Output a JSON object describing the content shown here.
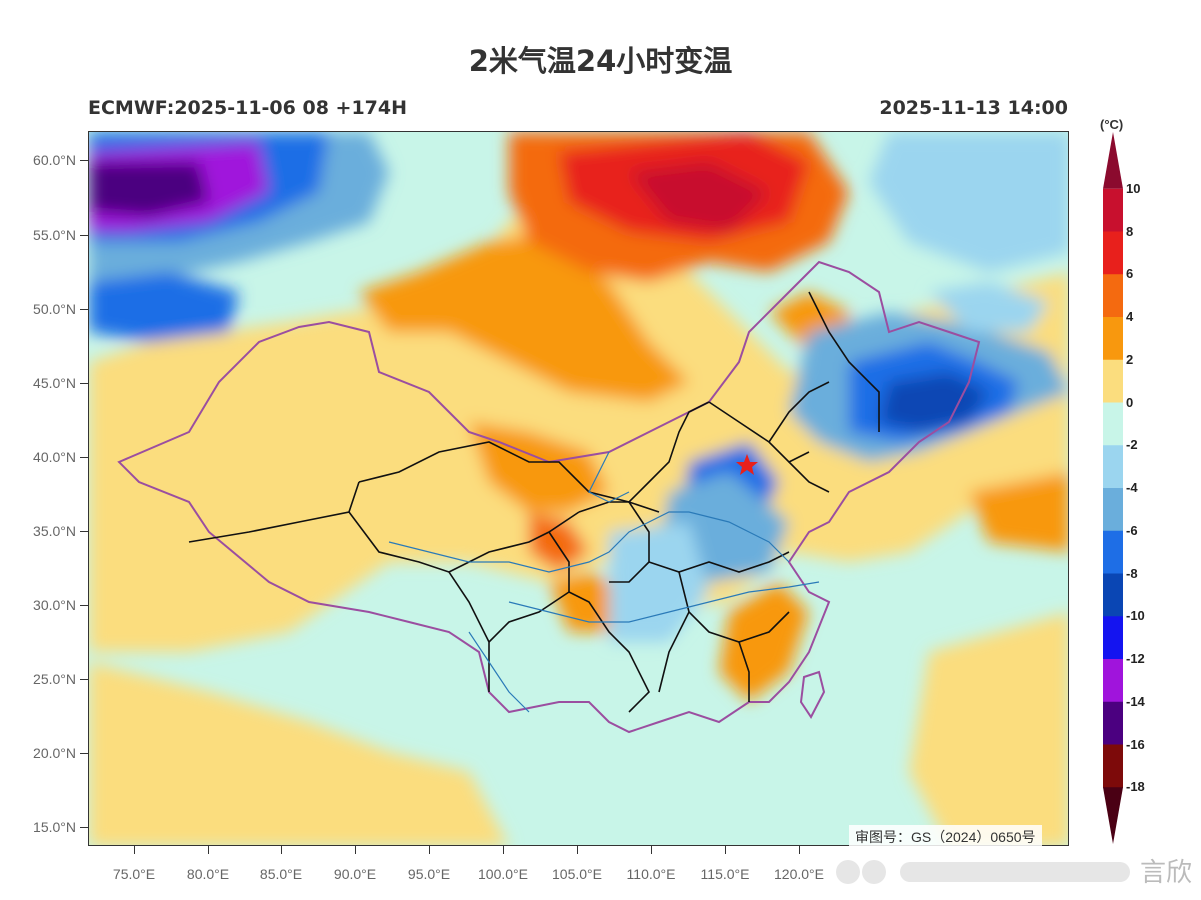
{
  "title": "2米气温24小时变温",
  "subtitle_left": "ECMWF:2025-11-06 08 +174H",
  "subtitle_right": "2025-11-13 14:00",
  "review_number": "审图号：GS（2024）0650号",
  "watermark_text": "言欣",
  "lat_labels": [
    "60.0°N",
    "55.0°N",
    "50.0°N",
    "45.0°N",
    "40.0°N",
    "35.0°N",
    "30.0°N",
    "25.0°N",
    "20.0°N",
    "15.0°N"
  ],
  "lon_labels": [
    "75.0°E",
    "80.0°E",
    "85.0°E",
    "90.0°E",
    "95.0°E",
    "100.0°E",
    "105.0°E",
    "110.0°E",
    "115.0°E",
    "120.0°E"
  ],
  "colorbar": {
    "unit": "(°C)",
    "levels": [
      "10",
      "8",
      "6",
      "4",
      "2",
      "0",
      "-2",
      "-4",
      "-6",
      "-8",
      "-10",
      "-12",
      "-14",
      "-16",
      "-18"
    ],
    "colors": [
      "#8b0a2e",
      "#c8102e",
      "#e8201c",
      "#f46a10",
      "#f8980e",
      "#fbdd7e",
      "#c8f5e8",
      "#9bd5ef",
      "#6aaedc",
      "#1e6ee6",
      "#0a46b4",
      "#1414f0",
      "#a014dc",
      "#4b0080",
      "#7d0a0a",
      "#4a0014"
    ]
  },
  "beijing_marker": "star",
  "icons": {
    "capital": "red-star-icon"
  }
}
